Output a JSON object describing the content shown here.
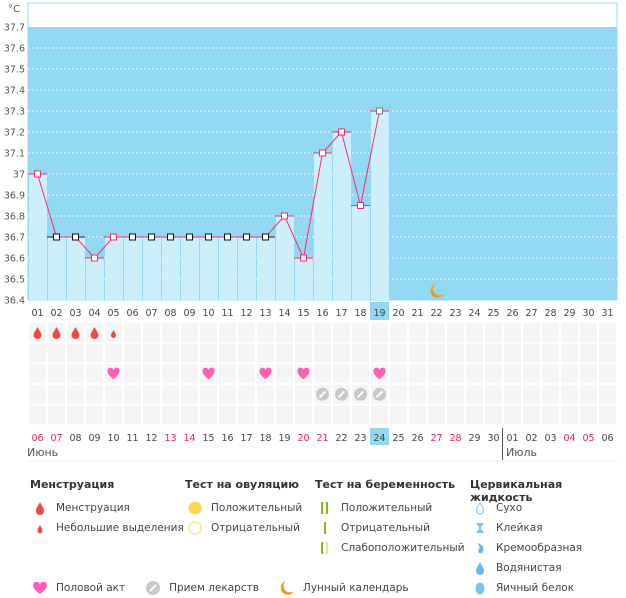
{
  "chart_data": {
    "type": "line",
    "unit_label": "°C",
    "ylim": [
      36.4,
      37.7
    ],
    "y_ticks": [
      "37.7",
      "37.6",
      "37.5",
      "37.4",
      "37.3",
      "37.2",
      "37.1",
      "37",
      "36.9",
      "36.8",
      "36.7",
      "36.6",
      "36.5",
      "36.4"
    ],
    "cycle_days": [
      "01",
      "02",
      "03",
      "04",
      "05",
      "06",
      "07",
      "08",
      "09",
      "10",
      "11",
      "12",
      "13",
      "14",
      "15",
      "16",
      "17",
      "18",
      "19",
      "20",
      "21",
      "22",
      "23",
      "24",
      "25",
      "26",
      "27",
      "28",
      "29",
      "30",
      "31"
    ],
    "current_day": "19",
    "series": [
      {
        "values": [
          37.0,
          36.7,
          36.7,
          36.6,
          36.7,
          36.7,
          36.7,
          36.7,
          36.7,
          36.7,
          36.7,
          36.7,
          36.7,
          36.8,
          36.6,
          37.1,
          37.2,
          36.85,
          37.3
        ],
        "marker_style": [
          "pink",
          "black",
          "black",
          "pink",
          "pink",
          "black",
          "black",
          "black",
          "black",
          "black",
          "black",
          "black",
          "black",
          "pink",
          "pink",
          "pink",
          "pink",
          "pink",
          "gray"
        ]
      }
    ],
    "grid": true,
    "moon_day": "22",
    "calendar_dates": [
      "06",
      "07",
      "08",
      "09",
      "10",
      "11",
      "12",
      "13",
      "14",
      "15",
      "16",
      "17",
      "18",
      "19",
      "20",
      "21",
      "22",
      "23",
      "24",
      "25",
      "26",
      "27",
      "28",
      "29",
      "30",
      "01",
      "02",
      "03",
      "04",
      "05",
      "06"
    ],
    "weekend_dates_idx": [
      0,
      1,
      7,
      8,
      14,
      15,
      21,
      22,
      28,
      29
    ],
    "today_idx": 18,
    "months": [
      "Июнь",
      "Июль"
    ],
    "events": {
      "menstruation_heavy": [
        "01",
        "02",
        "03",
        "04"
      ],
      "menstruation_light": [
        "05"
      ],
      "intercourse": [
        "05",
        "10",
        "13",
        "15",
        "19"
      ],
      "medication": [
        "16",
        "17",
        "18",
        "19"
      ]
    },
    "colors": {
      "background": "#93d8f2",
      "bar": "#cdeefb",
      "line": "#ff2a68",
      "drop": "#f04848",
      "heart": "#ff5fb3",
      "pill": "#c8c8c8",
      "moon": "#f39a1a",
      "weekend": "#ee1f4f"
    }
  },
  "legend": {
    "menstruation": {
      "title": "Менструация",
      "items": [
        "Менструация",
        "Небольшие выделения"
      ]
    },
    "ovulation": {
      "title": "Тест на овуляцию",
      "items": [
        "Положительный",
        "Отрицательный"
      ]
    },
    "pregnancy": {
      "title": "Тест на беременность",
      "items": [
        "Положительный",
        "Отрицательный",
        "Слабоположительный"
      ]
    },
    "cervical": {
      "title": "Цервикальная жидкость",
      "items": [
        "Сухо",
        "Клейкая",
        "Кремообразная",
        "Водянистая",
        "Яичный белок"
      ]
    },
    "bottom": [
      "Половой акт",
      "Прием лекарств",
      "Лунный календарь"
    ]
  }
}
